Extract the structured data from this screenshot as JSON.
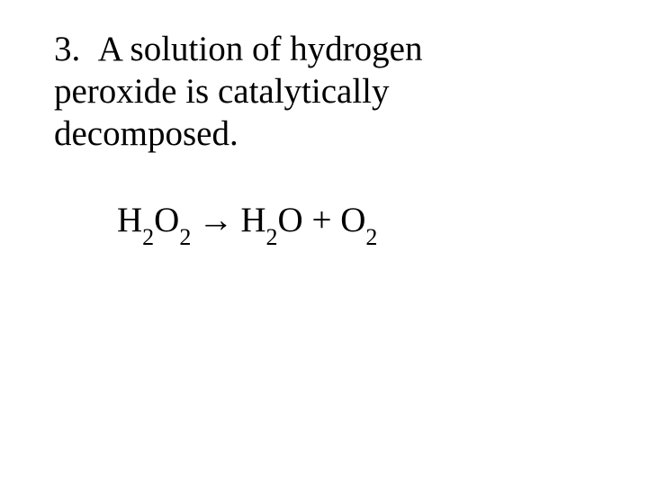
{
  "text_color": "#000000",
  "background_color": "#ffffff",
  "question_fontsize": 39,
  "equation_fontsize": 39,
  "subscript_fontsize": 26,
  "font_family": "Times New Roman",
  "question": {
    "number": "3.",
    "text": "A solution of hydrogen peroxide is catalytically decomposed."
  },
  "equation": {
    "reactant": {
      "formula": "H2O2",
      "parts": [
        "H",
        "2",
        "O",
        "2"
      ]
    },
    "arrow": "→",
    "products": [
      {
        "formula": "H2O",
        "parts": [
          "H",
          "2",
          "O"
        ]
      },
      {
        "operator": "+"
      },
      {
        "formula": "O2",
        "parts": [
          "O",
          "2"
        ]
      }
    ]
  }
}
